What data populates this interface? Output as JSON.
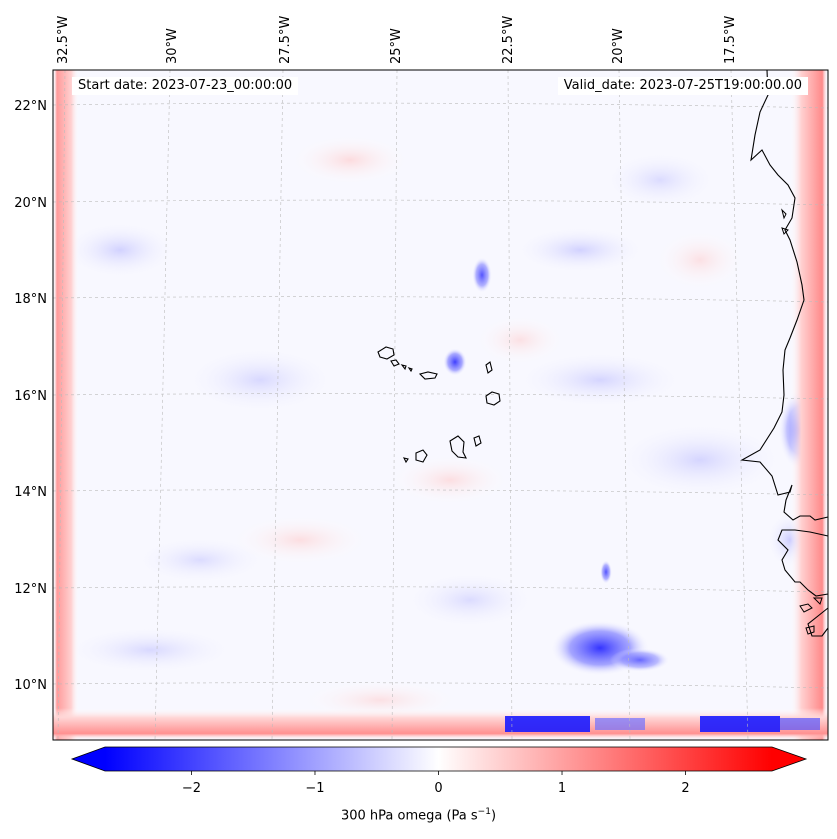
{
  "map": {
    "start_date": "Start date: 2023-07-23_00:00:00",
    "valid_date": "Valid_date: 2023-07-25T19:00:00.00",
    "lon_labels": [
      "32.5°W",
      "30°W",
      "27.5°W",
      "25°W",
      "22.5°W",
      "20°W",
      "17.5°W"
    ],
    "lat_labels": [
      "22°N",
      "20°N",
      "18°N",
      "16°N",
      "14°N",
      "12°N",
      "10°N"
    ],
    "field": "300 hPa omega",
    "features": [
      "Cape Verde islands",
      "West African coastline"
    ]
  },
  "colorbar": {
    "label_prefix": "300 hPa omega (Pa s",
    "label_exp": "−1",
    "label_suffix": ")",
    "ticks": [
      "−2",
      "−1",
      "0",
      "1",
      "2"
    ],
    "range": [
      -2.7,
      2.7
    ],
    "colormap": "bwr",
    "extend": "both",
    "colors": {
      "negative": "#0000ff",
      "zero": "#ffffff",
      "positive": "#ff0000"
    }
  }
}
